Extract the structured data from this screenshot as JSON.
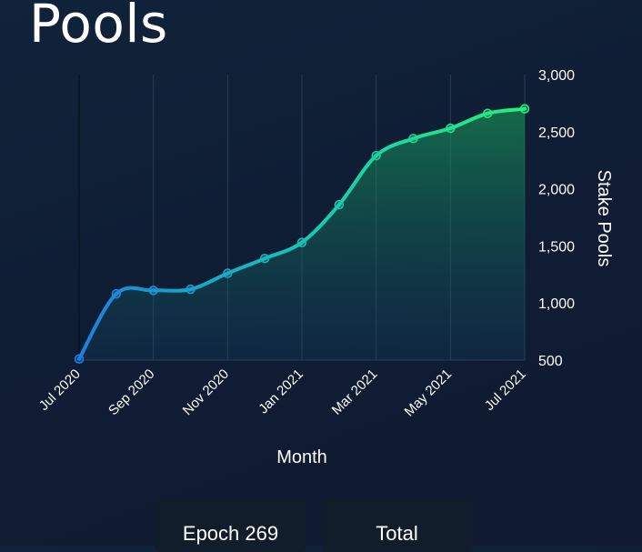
{
  "page": {
    "title": "Pools"
  },
  "tiles": {
    "epoch_label": "Epoch 269",
    "total_label": "Total"
  },
  "colors": {
    "line_start": "#1e7fe0",
    "line_end": "#27f07a",
    "background": "#0f1c33"
  },
  "chart_data": {
    "type": "line",
    "xlabel": "Month",
    "ylabel": "Stake Pools",
    "x_ticks": [
      "Jul 2020",
      "Sep 2020",
      "Nov 2020",
      "Jan 2021",
      "Mar 2021",
      "May 2021",
      "Jul 2021"
    ],
    "ylim": [
      500,
      3000
    ],
    "y_ticks": [
      500,
      1000,
      1500,
      2000,
      2500,
      3000
    ],
    "y_tick_labels": [
      "500",
      "1,000",
      "1,500",
      "2,000",
      "2,500",
      "3,000"
    ],
    "y_axis_position": "right",
    "grid": "vertical",
    "series": [
      {
        "x": [
          "Jul 2020",
          "Aug 2020",
          "Sep 2020",
          "Oct 2020",
          "Nov 2020",
          "Dec 2020",
          "Jan 2021",
          "Feb 2021",
          "Mar 2021",
          "Apr 2021",
          "May 2021",
          "Jun 2021",
          "Jul 2021"
        ],
        "values": [
          510,
          1080,
          1110,
          1120,
          1260,
          1390,
          1530,
          1860,
          2290,
          2440,
          2530,
          2660,
          2700
        ]
      }
    ]
  }
}
